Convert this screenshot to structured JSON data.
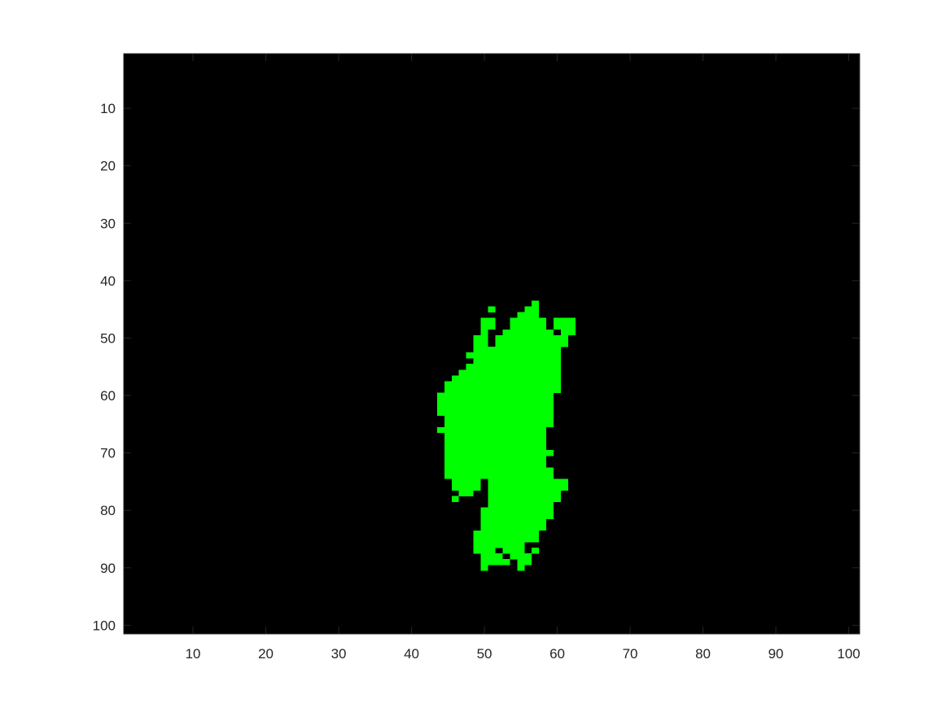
{
  "chart_data": {
    "type": "heatmap",
    "title": "",
    "xlabel": "",
    "ylabel": "",
    "xlim": [
      0.5,
      101.5
    ],
    "ylim": [
      0.5,
      101.5
    ],
    "y_direction": "reversed",
    "grid": false,
    "legend": "none",
    "xticks": [
      10,
      20,
      30,
      40,
      50,
      60,
      70,
      80,
      90,
      100
    ],
    "yticks": [
      10,
      20,
      30,
      40,
      50,
      60,
      70,
      80,
      90,
      100
    ],
    "xtick_labels": [
      "10",
      "20",
      "30",
      "40",
      "50",
      "60",
      "70",
      "80",
      "90",
      "100"
    ],
    "ytick_labels": [
      "10",
      "20",
      "30",
      "40",
      "50",
      "60",
      "70",
      "80",
      "90",
      "100"
    ],
    "colors": {
      "background": "#000000",
      "mask": "#00ff00",
      "axes": "#262626",
      "page": "#ffffff"
    },
    "mask_runs_description_note": "",
    "mask_runs": [
      {
        "row": 44,
        "cols": [
          [
            57,
            57
          ]
        ]
      },
      {
        "row": 45,
        "cols": [
          [
            51,
            51
          ],
          [
            56,
            57
          ]
        ]
      },
      {
        "row": 46,
        "cols": [
          [
            55,
            57
          ]
        ]
      },
      {
        "row": 47,
        "cols": [
          [
            50,
            51
          ],
          [
            54,
            58
          ],
          [
            60,
            62
          ]
        ]
      },
      {
        "row": 48,
        "cols": [
          [
            50,
            51
          ],
          [
            54,
            58
          ],
          [
            60,
            62
          ]
        ]
      },
      {
        "row": 49,
        "cols": [
          [
            50,
            50
          ],
          [
            53,
            59
          ],
          [
            61,
            62
          ]
        ]
      },
      {
        "row": 50,
        "cols": [
          [
            49,
            50
          ],
          [
            52,
            61
          ]
        ]
      },
      {
        "row": 51,
        "cols": [
          [
            49,
            50
          ],
          [
            52,
            61
          ]
        ]
      },
      {
        "row": 52,
        "cols": [
          [
            49,
            60
          ]
        ]
      },
      {
        "row": 53,
        "cols": [
          [
            48,
            60
          ]
        ]
      },
      {
        "row": 54,
        "cols": [
          [
            49,
            60
          ]
        ]
      },
      {
        "row": 55,
        "cols": [
          [
            48,
            60
          ]
        ]
      },
      {
        "row": 56,
        "cols": [
          [
            47,
            60
          ]
        ]
      },
      {
        "row": 57,
        "cols": [
          [
            46,
            60
          ]
        ]
      },
      {
        "row": 58,
        "cols": [
          [
            45,
            60
          ]
        ]
      },
      {
        "row": 59,
        "cols": [
          [
            45,
            60
          ]
        ]
      },
      {
        "row": 60,
        "cols": [
          [
            44,
            59
          ]
        ]
      },
      {
        "row": 61,
        "cols": [
          [
            44,
            59
          ]
        ]
      },
      {
        "row": 62,
        "cols": [
          [
            44,
            59
          ]
        ]
      },
      {
        "row": 63,
        "cols": [
          [
            44,
            59
          ]
        ]
      },
      {
        "row": 64,
        "cols": [
          [
            45,
            59
          ]
        ]
      },
      {
        "row": 65,
        "cols": [
          [
            45,
            59
          ]
        ]
      },
      {
        "row": 66,
        "cols": [
          [
            44,
            58
          ]
        ]
      },
      {
        "row": 67,
        "cols": [
          [
            45,
            58
          ]
        ]
      },
      {
        "row": 68,
        "cols": [
          [
            45,
            58
          ]
        ]
      },
      {
        "row": 69,
        "cols": [
          [
            45,
            58
          ]
        ]
      },
      {
        "row": 70,
        "cols": [
          [
            45,
            59
          ]
        ]
      },
      {
        "row": 71,
        "cols": [
          [
            45,
            58
          ]
        ]
      },
      {
        "row": 72,
        "cols": [
          [
            45,
            58
          ]
        ]
      },
      {
        "row": 73,
        "cols": [
          [
            45,
            59
          ]
        ]
      },
      {
        "row": 74,
        "cols": [
          [
            45,
            59
          ]
        ]
      },
      {
        "row": 75,
        "cols": [
          [
            46,
            49
          ],
          [
            51,
            61
          ]
        ]
      },
      {
        "row": 76,
        "cols": [
          [
            46,
            49
          ],
          [
            51,
            61
          ]
        ]
      },
      {
        "row": 77,
        "cols": [
          [
            47,
            48
          ],
          [
            51,
            60
          ]
        ]
      },
      {
        "row": 78,
        "cols": [
          [
            46,
            46
          ],
          [
            51,
            60
          ]
        ]
      },
      {
        "row": 79,
        "cols": [
          [
            51,
            59
          ]
        ]
      },
      {
        "row": 80,
        "cols": [
          [
            50,
            59
          ]
        ]
      },
      {
        "row": 81,
        "cols": [
          [
            50,
            59
          ]
        ]
      },
      {
        "row": 82,
        "cols": [
          [
            50,
            58
          ]
        ]
      },
      {
        "row": 83,
        "cols": [
          [
            50,
            58
          ]
        ]
      },
      {
        "row": 84,
        "cols": [
          [
            49,
            57
          ]
        ]
      },
      {
        "row": 85,
        "cols": [
          [
            49,
            57
          ]
        ]
      },
      {
        "row": 86,
        "cols": [
          [
            49,
            55
          ]
        ]
      },
      {
        "row": 87,
        "cols": [
          [
            49,
            51
          ],
          [
            53,
            55
          ],
          [
            57,
            57
          ]
        ]
      },
      {
        "row": 88,
        "cols": [
          [
            50,
            52
          ],
          [
            54,
            56
          ]
        ]
      },
      {
        "row": 89,
        "cols": [
          [
            50,
            53
          ],
          [
            55,
            56
          ]
        ]
      },
      {
        "row": 90,
        "cols": [
          [
            50,
            50
          ],
          [
            55,
            55
          ]
        ]
      }
    ]
  }
}
